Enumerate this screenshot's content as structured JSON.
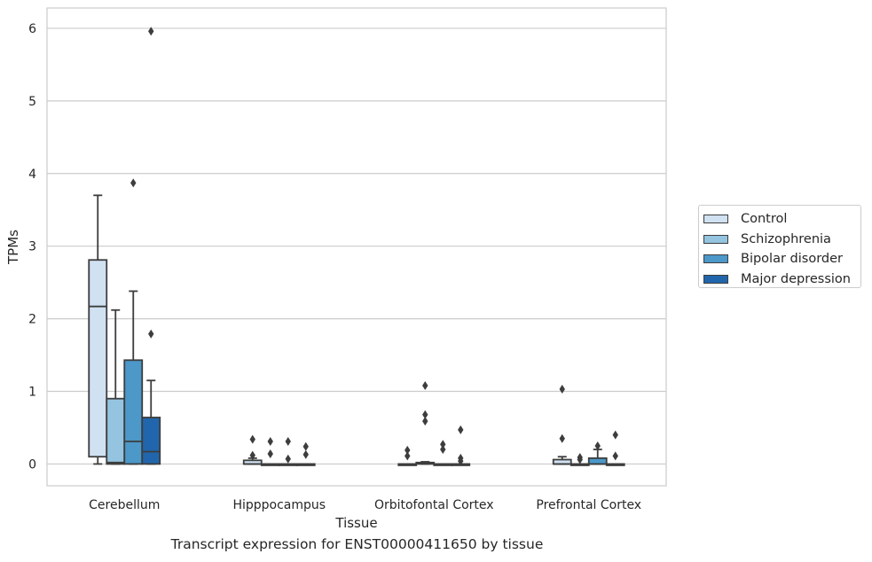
{
  "caption": "Transcript expression for ENST00000411650 by tissue",
  "chart_data": {
    "type": "box",
    "xlabel": "Tissue",
    "ylabel": "TPMs",
    "ylim": [
      -0.3,
      6.28
    ],
    "yticks": [
      0,
      1,
      2,
      3,
      4,
      5,
      6
    ],
    "grid": "horizontal",
    "legend_position": "right",
    "categories": [
      "Cerebellum",
      "Hipppocampus",
      "Orbitofontal Cortex",
      "Prefrontal Cortex"
    ],
    "series": [
      {
        "name": "Control",
        "color": "#d0e1f2",
        "boxes": [
          {
            "q1": 0.1,
            "median": 2.17,
            "q3": 2.81,
            "whisker_low": 0.0,
            "whisker_high": 3.7,
            "outliers": []
          },
          {
            "q1": 0.0,
            "median": 0.0,
            "q3": 0.05,
            "whisker_low": 0.0,
            "whisker_high": 0.08,
            "outliers": [
              0.12,
              0.34
            ]
          },
          {
            "q1": 0.0,
            "median": 0.0,
            "q3": 0.0,
            "whisker_low": 0.0,
            "whisker_high": 0.0,
            "outliers": [
              0.11,
              0.19
            ]
          },
          {
            "q1": 0.0,
            "median": 0.0,
            "q3": 0.06,
            "whisker_low": 0.0,
            "whisker_high": 0.1,
            "outliers": [
              0.35,
              1.03
            ]
          }
        ]
      },
      {
        "name": "Schizophrenia",
        "color": "#94c4df",
        "boxes": [
          {
            "q1": 0.0,
            "median": 0.02,
            "q3": 0.9,
            "whisker_low": 0.0,
            "whisker_high": 2.12,
            "outliers": []
          },
          {
            "q1": 0.0,
            "median": 0.0,
            "q3": 0.0,
            "whisker_low": 0.0,
            "whisker_high": 0.0,
            "outliers": [
              0.14,
              0.31
            ]
          },
          {
            "q1": 0.0,
            "median": 0.01,
            "q3": 0.02,
            "whisker_low": 0.0,
            "whisker_high": 0.03,
            "outliers": [
              0.59,
              0.68,
              1.08
            ]
          },
          {
            "q1": 0.0,
            "median": 0.0,
            "q3": 0.0,
            "whisker_low": 0.0,
            "whisker_high": 0.0,
            "outliers": [
              0.06,
              0.09
            ]
          }
        ]
      },
      {
        "name": "Bipolar disorder",
        "color": "#4b98c9",
        "boxes": [
          {
            "q1": 0.0,
            "median": 0.31,
            "q3": 1.43,
            "whisker_low": 0.0,
            "whisker_high": 2.38,
            "outliers": [
              3.87
            ]
          },
          {
            "q1": 0.0,
            "median": 0.0,
            "q3": 0.0,
            "whisker_low": 0.0,
            "whisker_high": 0.0,
            "outliers": [
              0.07,
              0.31
            ]
          },
          {
            "q1": 0.0,
            "median": 0.0,
            "q3": 0.0,
            "whisker_low": 0.0,
            "whisker_high": 0.0,
            "outliers": [
              0.2,
              0.27
            ]
          },
          {
            "q1": 0.0,
            "median": 0.0,
            "q3": 0.08,
            "whisker_low": 0.0,
            "whisker_high": 0.2,
            "outliers": [
              0.25
            ]
          }
        ]
      },
      {
        "name": "Major depression",
        "color": "#2166ac",
        "boxes": [
          {
            "q1": 0.0,
            "median": 0.17,
            "q3": 0.64,
            "whisker_low": 0.0,
            "whisker_high": 1.15,
            "outliers": [
              1.79,
              5.96
            ]
          },
          {
            "q1": 0.0,
            "median": 0.0,
            "q3": 0.0,
            "whisker_low": 0.0,
            "whisker_high": 0.0,
            "outliers": [
              0.13,
              0.24
            ]
          },
          {
            "q1": 0.0,
            "median": 0.0,
            "q3": 0.0,
            "whisker_low": 0.0,
            "whisker_high": 0.0,
            "outliers": [
              0.04,
              0.08,
              0.47
            ]
          },
          {
            "q1": 0.0,
            "median": 0.0,
            "q3": 0.0,
            "whisker_low": 0.0,
            "whisker_high": 0.0,
            "outliers": [
              0.11,
              0.4
            ]
          }
        ]
      }
    ]
  }
}
